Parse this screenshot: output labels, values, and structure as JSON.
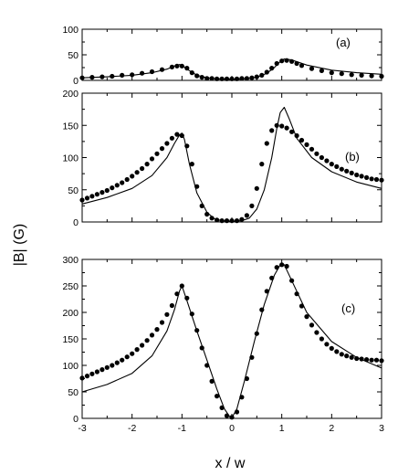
{
  "chart_data": {
    "type": "line",
    "xlabel": "x / w",
    "ylabel": "|B| (G)",
    "xlim": [
      -3,
      3
    ],
    "x_ticks": [
      "-3",
      "-2",
      "-1",
      "0",
      "1",
      "2",
      "3"
    ],
    "panels": [
      {
        "label": "(a)",
        "ylim": [
          0,
          100
        ],
        "y_ticks": [
          "0",
          "50",
          "100"
        ],
        "series": [
          {
            "style": "solid-line",
            "x": [
              -3,
              -2.5,
              -2,
              -1.6,
              -1.3,
              -1.15,
              -1.05,
              -1.0,
              -0.9,
              -0.7,
              -0.5,
              -0.3,
              0,
              0.3,
              0.5,
              0.7,
              0.85,
              0.95,
              1.05,
              1.2,
              1.5,
              2,
              2.5,
              3
            ],
            "y": [
              5,
              7,
              10,
              15,
              22,
              28,
              31,
              30,
              22,
              10,
              5,
              3,
              2,
              3,
              6,
              14,
              25,
              35,
              42,
              40,
              30,
              20,
              15,
              12
            ]
          },
          {
            "style": "dots",
            "x": [
              -3,
              -2.8,
              -2.6,
              -2.4,
              -2.2,
              -2.0,
              -1.8,
              -1.6,
              -1.4,
              -1.2,
              -1.1,
              -1.0,
              -0.9,
              -0.8,
              -0.7,
              -0.6,
              -0.5,
              -0.4,
              -0.3,
              -0.2,
              -0.1,
              0,
              0.1,
              0.2,
              0.3,
              0.4,
              0.5,
              0.6,
              0.7,
              0.8,
              0.9,
              1.0,
              1.1,
              1.2,
              1.3,
              1.4,
              1.6,
              1.8,
              2.0,
              2.2,
              2.4,
              2.6,
              2.8,
              3.0
            ],
            "y": [
              5,
              6,
              7,
              8,
              10,
              11,
              14,
              17,
              21,
              26,
              28,
              28,
              24,
              15,
              9,
              6,
              4,
              4,
              3,
              3,
              3,
              3,
              3,
              4,
              4,
              5,
              7,
              10,
              16,
              24,
              33,
              38,
              39,
              37,
              33,
              29,
              23,
              19,
              15,
              13,
              11,
              10,
              9,
              8
            ]
          }
        ]
      },
      {
        "label": "(b)",
        "ylim": [
          0,
          200
        ],
        "y_ticks": [
          "0",
          "50",
          "100",
          "150",
          "200"
        ],
        "series": [
          {
            "style": "solid-line",
            "x": [
              -3,
              -2.5,
              -2,
              -1.6,
              -1.3,
              -1.15,
              -1.05,
              -1.0,
              -0.95,
              -0.85,
              -0.7,
              -0.5,
              -0.35,
              -0.2,
              0,
              0.2,
              0.35,
              0.5,
              0.65,
              0.8,
              0.9,
              0.97,
              1.05,
              1.15,
              1.3,
              1.6,
              2,
              2.5,
              3
            ],
            "y": [
              28,
              38,
              52,
              72,
              100,
              122,
              135,
              138,
              128,
              90,
              45,
              15,
              5,
              2,
              1,
              2,
              6,
              20,
              50,
              100,
              145,
              170,
              178,
              160,
              130,
              100,
              78,
              62,
              52
            ]
          },
          {
            "style": "dots",
            "x": [
              -3,
              -2.9,
              -2.8,
              -2.7,
              -2.6,
              -2.5,
              -2.4,
              -2.3,
              -2.2,
              -2.1,
              -2.0,
              -1.9,
              -1.8,
              -1.7,
              -1.6,
              -1.5,
              -1.4,
              -1.3,
              -1.2,
              -1.1,
              -1.0,
              -0.9,
              -0.8,
              -0.7,
              -0.6,
              -0.5,
              -0.4,
              -0.3,
              -0.2,
              -0.1,
              0,
              0.1,
              0.2,
              0.3,
              0.4,
              0.5,
              0.6,
              0.7,
              0.8,
              0.9,
              1.0,
              1.1,
              1.2,
              1.3,
              1.4,
              1.5,
              1.6,
              1.7,
              1.8,
              1.9,
              2.0,
              2.1,
              2.2,
              2.3,
              2.4,
              2.5,
              2.6,
              2.7,
              2.8,
              2.9,
              3.0
            ],
            "y": [
              34,
              37,
              40,
              43,
              46,
              49,
              53,
              57,
              61,
              66,
              71,
              77,
              83,
              90,
              98,
              106,
              114,
              122,
              130,
              136,
              134,
              118,
              90,
              55,
              25,
              12,
              6,
              3,
              2,
              2,
              2,
              2,
              4,
              10,
              25,
              52,
              90,
              122,
              142,
              150,
              149,
              146,
              140,
              134,
              127,
              120,
              113,
              106,
              100,
              95,
              90,
              86,
              82,
              79,
              76,
              73,
              71,
              69,
              67,
              66,
              65
            ]
          }
        ]
      },
      {
        "label": "(c)",
        "ylim": [
          0,
          300
        ],
        "y_ticks": [
          "0",
          "50",
          "100",
          "150",
          "200",
          "250",
          "300"
        ],
        "series": [
          {
            "style": "solid-line",
            "x": [
              -3,
              -2.5,
              -2,
              -1.6,
              -1.3,
              -1.15,
              -1.05,
              -1.0,
              -0.9,
              -0.7,
              -0.5,
              -0.3,
              -0.15,
              -0.05,
              0,
              0.1,
              0.25,
              0.45,
              0.65,
              0.85,
              0.97,
              1.05,
              1.2,
              1.5,
              2,
              2.5,
              3
            ],
            "y": [
              50,
              64,
              85,
              118,
              165,
              205,
              240,
              250,
              222,
              165,
              110,
              55,
              18,
              4,
              1,
              18,
              70,
              145,
              215,
              270,
              290,
              290,
              260,
              200,
              145,
              115,
              95
            ]
          },
          {
            "style": "dots",
            "x": [
              -3,
              -2.9,
              -2.8,
              -2.7,
              -2.6,
              -2.5,
              -2.4,
              -2.3,
              -2.2,
              -2.1,
              -2.0,
              -1.9,
              -1.8,
              -1.7,
              -1.6,
              -1.5,
              -1.4,
              -1.3,
              -1.2,
              -1.1,
              -1.0,
              -0.9,
              -0.8,
              -0.7,
              -0.6,
              -0.5,
              -0.4,
              -0.3,
              -0.2,
              -0.1,
              0,
              0.1,
              0.2,
              0.3,
              0.4,
              0.5,
              0.6,
              0.7,
              0.8,
              0.9,
              1.0,
              1.1,
              1.2,
              1.3,
              1.4,
              1.5,
              1.6,
              1.7,
              1.8,
              1.9,
              2.0,
              2.1,
              2.2,
              2.3,
              2.4,
              2.5,
              2.6,
              2.7,
              2.8,
              2.9,
              3.0
            ],
            "y": [
              76,
              80,
              84,
              88,
              92,
              96,
              100,
              105,
              110,
              116,
              122,
              130,
              138,
              147,
              157,
              168,
              181,
              196,
              213,
              235,
              250,
              227,
              197,
              166,
              133,
              100,
              70,
              42,
              20,
              5,
              2,
              12,
              40,
              75,
              115,
              160,
              205,
              240,
              265,
              285,
              290,
              287,
              260,
              235,
              212,
              192,
              176,
              162,
              150,
              140,
              132,
              126,
              121,
              118,
              115,
              113,
              112,
              111,
              110,
              110,
              109
            ]
          }
        ]
      }
    ]
  }
}
